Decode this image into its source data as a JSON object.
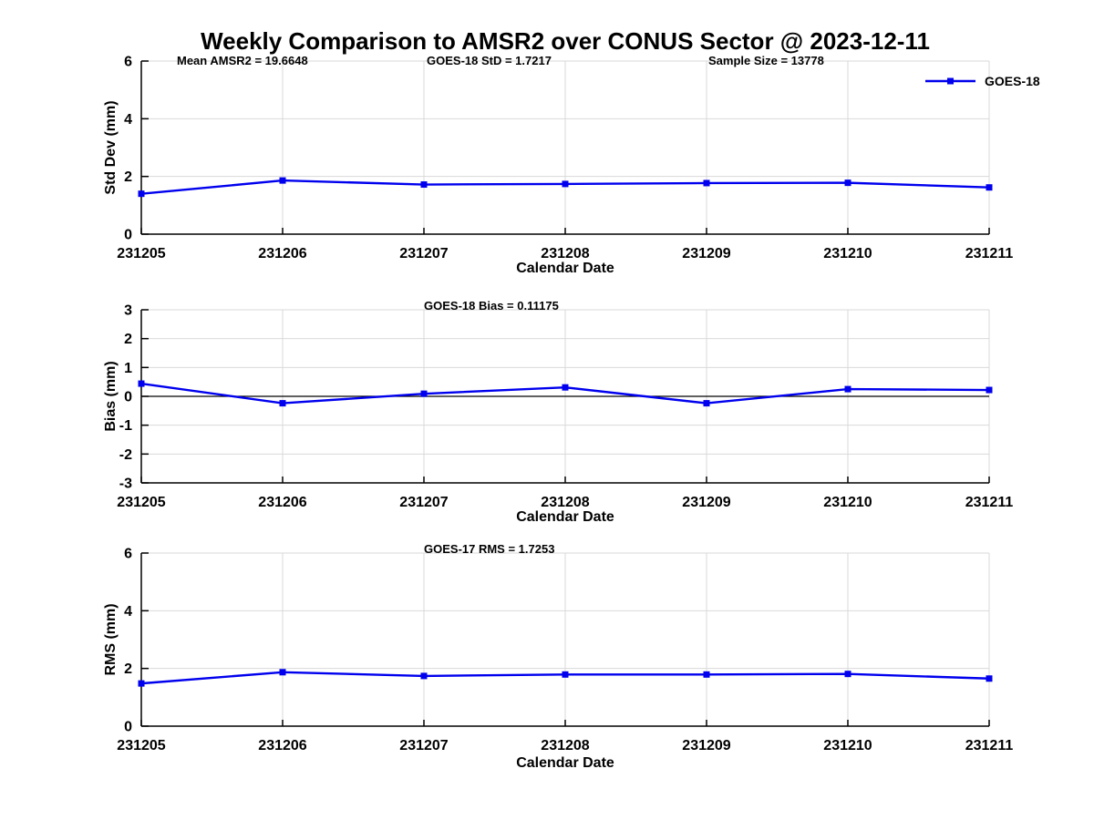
{
  "figure": {
    "title": "Weekly Comparison to AMSR2 over CONUS Sector @ 2023-12-11",
    "background": "#ffffff"
  },
  "colors": {
    "series_line": "#0000EE",
    "grid_line": "#d9d9d9",
    "axis_line": "#000000",
    "text": "#000000"
  },
  "legend": {
    "series_label": "GOES-18",
    "position": "top-right"
  },
  "chart_data": [
    {
      "type": "line",
      "panel": "std-dev",
      "annotations": [
        "Mean AMSR2 = 19.6648",
        "GOES-18 StD = 1.7217",
        "Sample Size = 13778"
      ],
      "ylabel": "Std Dev (mm)",
      "xlabel": "Calendar Date",
      "categories": [
        "231205",
        "231206",
        "231207",
        "231208",
        "231209",
        "231210",
        "231211"
      ],
      "series": [
        {
          "name": "GOES-18",
          "values": [
            1.4,
            1.86,
            1.72,
            1.74,
            1.77,
            1.78,
            1.62
          ]
        }
      ],
      "ylim": [
        0,
        6
      ],
      "yticks": [
        0,
        2,
        4,
        6
      ],
      "grid": true,
      "zero_line": false
    },
    {
      "type": "line",
      "panel": "bias",
      "annotations": [
        "GOES-18 Bias  = 0.11175"
      ],
      "ylabel": "Bias (mm)",
      "xlabel": "Calendar Date",
      "categories": [
        "231205",
        "231206",
        "231207",
        "231208",
        "231209",
        "231210",
        "231211"
      ],
      "series": [
        {
          "name": "GOES-18",
          "values": [
            0.44,
            -0.24,
            0.09,
            0.31,
            -0.24,
            0.25,
            0.22
          ]
        }
      ],
      "ylim": [
        -3,
        3
      ],
      "yticks": [
        -3,
        -2,
        -1,
        0,
        1,
        2,
        3
      ],
      "grid": true,
      "zero_line": true
    },
    {
      "type": "line",
      "panel": "rms",
      "annotations": [
        "GOES-17 RMS = 1.7253"
      ],
      "ylabel": "RMS (mm)",
      "xlabel": "Calendar Date",
      "categories": [
        "231205",
        "231206",
        "231207",
        "231208",
        "231209",
        "231210",
        "231211"
      ],
      "series": [
        {
          "name": "GOES-18",
          "values": [
            1.48,
            1.87,
            1.74,
            1.79,
            1.79,
            1.81,
            1.65
          ]
        }
      ],
      "ylim": [
        0,
        6
      ],
      "yticks": [
        0,
        2,
        4,
        6
      ],
      "grid": true,
      "zero_line": false
    }
  ]
}
